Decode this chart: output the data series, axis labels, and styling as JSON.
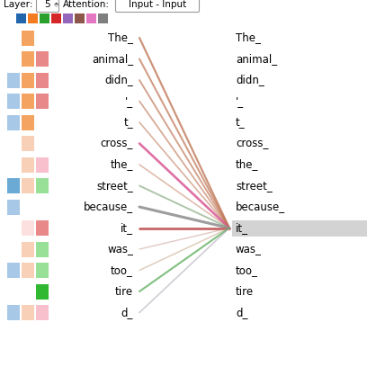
{
  "tokens": [
    "The_",
    "animal_",
    "didn_",
    "'_",
    "t_",
    "cross_",
    "the_",
    "street_",
    "because_",
    "it_",
    "was_",
    "too_",
    "tire",
    "d_"
  ],
  "header_colors": [
    "#2166ac",
    "#f47c20",
    "#2ca02c",
    "#d62728",
    "#9467bd",
    "#8c564b",
    "#e377c2",
    "#7f7f7f"
  ],
  "highlight_token_idx": 9,
  "highlight_color": "#d3d3d3",
  "lines_target_idx": 9,
  "line_data": [
    {
      "from_idx": 0,
      "color": "#c07858",
      "alpha": 0.8,
      "lw": 1.6
    },
    {
      "from_idx": 1,
      "color": "#c07858",
      "alpha": 0.72,
      "lw": 1.5
    },
    {
      "from_idx": 2,
      "color": "#c07858",
      "alpha": 0.68,
      "lw": 1.4
    },
    {
      "from_idx": 3,
      "color": "#c07858",
      "alpha": 0.62,
      "lw": 1.3
    },
    {
      "from_idx": 4,
      "color": "#c07858",
      "alpha": 0.58,
      "lw": 1.2
    },
    {
      "from_idx": 5,
      "color": "#d85090",
      "alpha": 0.82,
      "lw": 1.9
    },
    {
      "from_idx": 6,
      "color": "#c07858",
      "alpha": 0.52,
      "lw": 1.1
    },
    {
      "from_idx": 7,
      "color": "#88aa80",
      "alpha": 0.68,
      "lw": 1.4
    },
    {
      "from_idx": 8,
      "color": "#909090",
      "alpha": 0.88,
      "lw": 2.2
    },
    {
      "from_idx": 9,
      "color": "#c05050",
      "alpha": 0.88,
      "lw": 2.0
    },
    {
      "from_idx": 10,
      "color": "#c09080",
      "alpha": 0.48,
      "lw": 1.0
    },
    {
      "from_idx": 11,
      "color": "#c0a080",
      "alpha": 0.52,
      "lw": 1.1
    },
    {
      "from_idx": 12,
      "color": "#50a850",
      "alpha": 0.72,
      "lw": 1.5
    },
    {
      "from_idx": 13,
      "color": "#b0a8b8",
      "alpha": 0.58,
      "lw": 1.2
    }
  ],
  "left_color_blocks": [
    [
      null,
      "#f4a460",
      null
    ],
    [
      null,
      "#f4a460",
      "#e88888"
    ],
    [
      "#a8c8e8",
      "#f4a460",
      "#e88888"
    ],
    [
      "#a8c8e8",
      "#f4a460",
      "#e88888"
    ],
    [
      "#a8c8e8",
      "#f4a460",
      null
    ],
    [
      null,
      "#f8d0b8",
      null
    ],
    [
      null,
      "#f8d0b8",
      "#f8c0cc"
    ],
    [
      "#6aaad4",
      "#f8d0b8",
      "#98e098"
    ],
    [
      "#a8c8e8",
      null,
      null
    ],
    [
      null,
      "#fce0e0",
      "#e88888"
    ],
    [
      null,
      "#f8d0b8",
      "#98e098"
    ],
    [
      "#a8c8e8",
      "#f8d0b8",
      "#98e098"
    ],
    [
      null,
      null,
      "#30b830"
    ],
    [
      "#a8c8e8",
      "#f8d0b8",
      "#f8c0cc"
    ]
  ],
  "bg_color": "#ffffff"
}
